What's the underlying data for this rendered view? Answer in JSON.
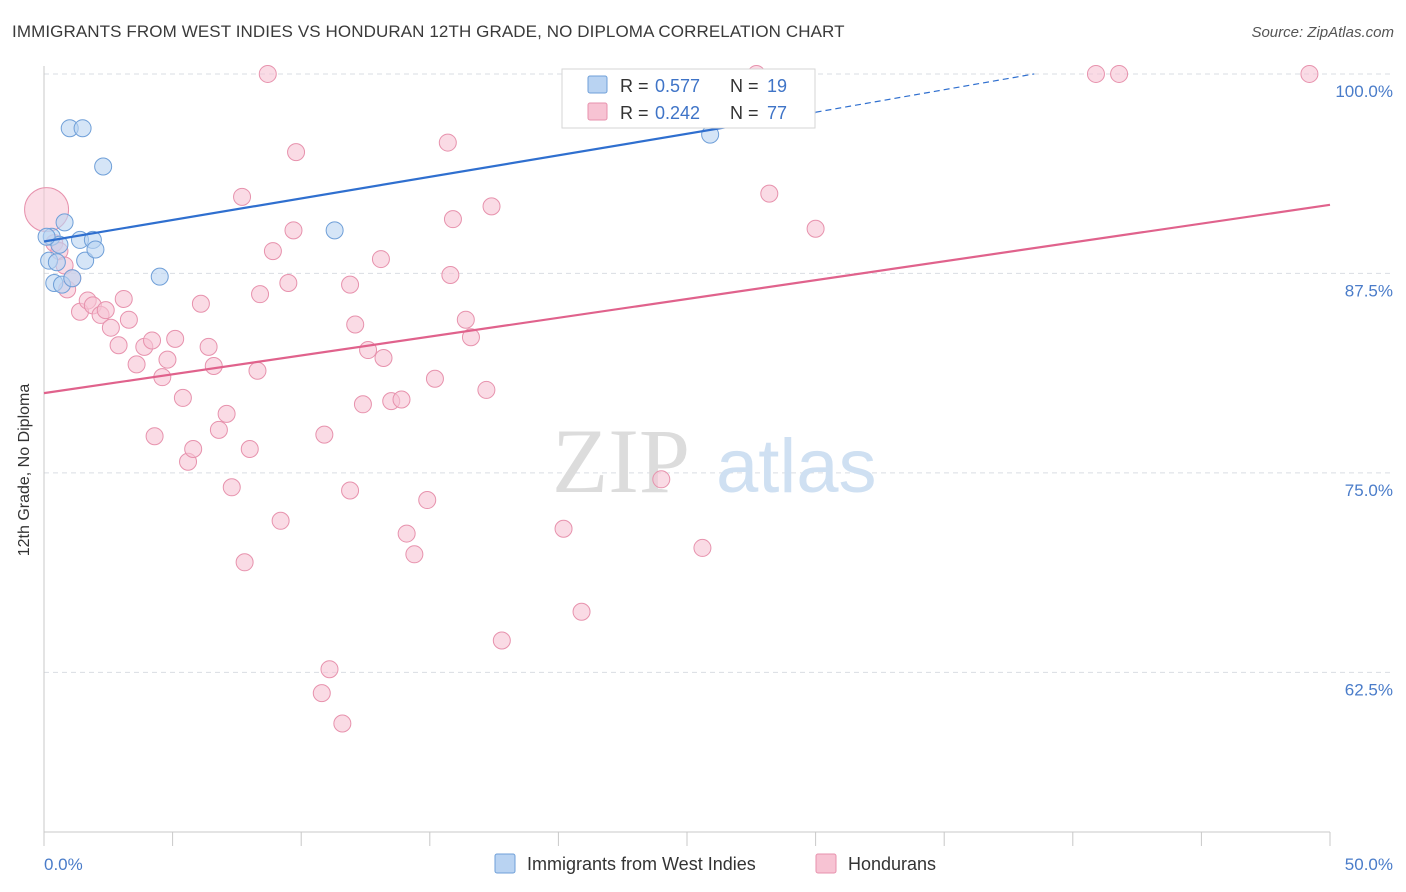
{
  "title": "IMMIGRANTS FROM WEST INDIES VS HONDURAN 12TH GRADE, NO DIPLOMA CORRELATION CHART",
  "source": "Source: ZipAtlas.com",
  "watermark": {
    "zip": "ZIP",
    "atlas": "atlas"
  },
  "colors": {
    "blue_fill": "#b9d3f2",
    "blue_stroke": "#6f9fd8",
    "blue_line": "#2f6fcf",
    "pink_fill": "#f7c3d3",
    "pink_stroke": "#e792ad",
    "pink_line": "#e0628c",
    "tick_label": "#4a7cc9",
    "grid": "#d9dde3"
  },
  "legend": {
    "rows": [
      {
        "r_label": "R = ",
        "r_value": "0.577",
        "n_label": "N = ",
        "n_value": "19"
      },
      {
        "r_label": "R = ",
        "r_value": "0.242",
        "n_label": "N = ",
        "n_value": "77"
      }
    ]
  },
  "chart_data": {
    "type": "scatter",
    "title": "IMMIGRANTS FROM WEST INDIES VS HONDURAN 12TH GRADE, NO DIPLOMA CORRELATION CHART",
    "xlabel": "",
    "ylabel": "12th Grade, No Diploma",
    "xlim": [
      0,
      50
    ],
    "ylim": [
      52.5,
      101.5
    ],
    "x_tick_labels": [
      "0.0%",
      "50.0%"
    ],
    "y_ticks": [
      62.5,
      75.0,
      87.5,
      100.0
    ],
    "y_tick_labels": [
      "62.5%",
      "75.0%",
      "87.5%",
      "100.0%"
    ],
    "grid": true,
    "legend_position": "top-center",
    "series": [
      {
        "name": "Immigrants from West Indies",
        "r": 0.577,
        "n": 19,
        "points": [
          {
            "x": 0.2,
            "y": 88.3
          },
          {
            "x": 0.3,
            "y": 89.8
          },
          {
            "x": 0.4,
            "y": 86.9
          },
          {
            "x": 0.5,
            "y": 88.2
          },
          {
            "x": 0.6,
            "y": 89.3
          },
          {
            "x": 0.7,
            "y": 86.8
          },
          {
            "x": 0.8,
            "y": 90.7
          },
          {
            "x": 1.0,
            "y": 96.6
          },
          {
            "x": 1.1,
            "y": 87.2
          },
          {
            "x": 1.4,
            "y": 89.6
          },
          {
            "x": 1.5,
            "y": 96.6
          },
          {
            "x": 1.6,
            "y": 88.3
          },
          {
            "x": 1.9,
            "y": 89.6
          },
          {
            "x": 2.0,
            "y": 89.0
          },
          {
            "x": 2.3,
            "y": 94.2
          },
          {
            "x": 4.5,
            "y": 87.3
          },
          {
            "x": 11.3,
            "y": 90.2
          },
          {
            "x": 25.9,
            "y": 96.2
          },
          {
            "x": 0.1,
            "y": 89.8
          }
        ],
        "trend": {
          "x": [
            0,
            30
          ],
          "y": [
            89.5,
            97.6
          ]
        },
        "trend_dashed": {
          "x": [
            30,
            38.5
          ],
          "y": [
            97.6,
            100.0
          ]
        }
      },
      {
        "name": "Hondurans",
        "r": 0.242,
        "n": 77,
        "points": [
          {
            "x": 0.1,
            "y": 91.5
          },
          {
            "x": 0.4,
            "y": 89.4
          },
          {
            "x": 0.6,
            "y": 88.9
          },
          {
            "x": 0.8,
            "y": 88.0
          },
          {
            "x": 0.9,
            "y": 86.5
          },
          {
            "x": 1.1,
            "y": 87.2
          },
          {
            "x": 1.4,
            "y": 85.1
          },
          {
            "x": 1.7,
            "y": 85.8
          },
          {
            "x": 1.9,
            "y": 85.5
          },
          {
            "x": 2.2,
            "y": 84.9
          },
          {
            "x": 2.4,
            "y": 85.2
          },
          {
            "x": 2.6,
            "y": 84.1
          },
          {
            "x": 2.9,
            "y": 83.0
          },
          {
            "x": 3.1,
            "y": 85.9
          },
          {
            "x": 3.3,
            "y": 84.6
          },
          {
            "x": 3.6,
            "y": 81.8
          },
          {
            "x": 3.9,
            "y": 82.9
          },
          {
            "x": 4.2,
            "y": 83.3
          },
          {
            "x": 4.3,
            "y": 77.3
          },
          {
            "x": 4.6,
            "y": 81.0
          },
          {
            "x": 4.8,
            "y": 82.1
          },
          {
            "x": 5.1,
            "y": 83.4
          },
          {
            "x": 5.4,
            "y": 79.7
          },
          {
            "x": 5.6,
            "y": 75.7
          },
          {
            "x": 5.8,
            "y": 76.5
          },
          {
            "x": 6.1,
            "y": 85.6
          },
          {
            "x": 6.4,
            "y": 82.9
          },
          {
            "x": 6.6,
            "y": 81.7
          },
          {
            "x": 6.8,
            "y": 77.7
          },
          {
            "x": 7.1,
            "y": 78.7
          },
          {
            "x": 7.3,
            "y": 74.1
          },
          {
            "x": 7.7,
            "y": 92.3
          },
          {
            "x": 7.8,
            "y": 69.4
          },
          {
            "x": 8.0,
            "y": 76.5
          },
          {
            "x": 8.3,
            "y": 81.4
          },
          {
            "x": 8.4,
            "y": 86.2
          },
          {
            "x": 8.7,
            "y": 100.0
          },
          {
            "x": 8.9,
            "y": 88.9
          },
          {
            "x": 9.2,
            "y": 72.0
          },
          {
            "x": 9.5,
            "y": 86.9
          },
          {
            "x": 9.7,
            "y": 90.2
          },
          {
            "x": 9.8,
            "y": 95.1
          },
          {
            "x": 10.8,
            "y": 61.2
          },
          {
            "x": 10.9,
            "y": 77.4
          },
          {
            "x": 11.1,
            "y": 62.7
          },
          {
            "x": 11.6,
            "y": 59.3
          },
          {
            "x": 11.9,
            "y": 86.8
          },
          {
            "x": 11.9,
            "y": 73.9
          },
          {
            "x": 12.1,
            "y": 84.3
          },
          {
            "x": 12.4,
            "y": 79.3
          },
          {
            "x": 12.6,
            "y": 82.7
          },
          {
            "x": 13.1,
            "y": 88.4
          },
          {
            "x": 13.2,
            "y": 82.2
          },
          {
            "x": 13.5,
            "y": 79.5
          },
          {
            "x": 13.9,
            "y": 79.6
          },
          {
            "x": 14.1,
            "y": 71.2
          },
          {
            "x": 14.4,
            "y": 69.9
          },
          {
            "x": 14.9,
            "y": 73.3
          },
          {
            "x": 15.2,
            "y": 80.9
          },
          {
            "x": 15.7,
            "y": 95.7
          },
          {
            "x": 15.8,
            "y": 87.4
          },
          {
            "x": 15.9,
            "y": 90.9
          },
          {
            "x": 16.4,
            "y": 84.6
          },
          {
            "x": 16.6,
            "y": 83.5
          },
          {
            "x": 17.2,
            "y": 80.2
          },
          {
            "x": 17.4,
            "y": 91.7
          },
          {
            "x": 17.8,
            "y": 64.5
          },
          {
            "x": 20.2,
            "y": 71.5
          },
          {
            "x": 20.9,
            "y": 66.3
          },
          {
            "x": 24.0,
            "y": 74.6
          },
          {
            "x": 25.6,
            "y": 70.3
          },
          {
            "x": 27.7,
            "y": 100.0
          },
          {
            "x": 28.2,
            "y": 92.5
          },
          {
            "x": 30.0,
            "y": 90.3
          },
          {
            "x": 40.9,
            "y": 100.0
          },
          {
            "x": 41.8,
            "y": 100.0
          },
          {
            "x": 49.2,
            "y": 100.0
          }
        ],
        "trend": {
          "x": [
            0,
            50
          ],
          "y": [
            80.0,
            91.8
          ]
        }
      }
    ]
  }
}
